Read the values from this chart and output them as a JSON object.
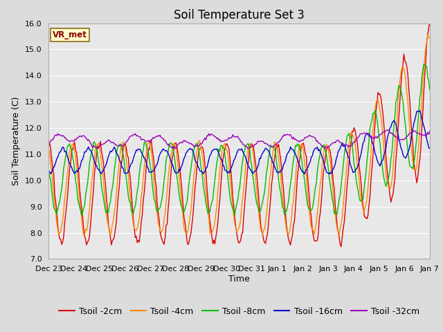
{
  "title": "Soil Temperature Set 3",
  "xlabel": "Time",
  "ylabel": "Soil Temperature (C)",
  "ylim": [
    7.0,
    16.0
  ],
  "yticks": [
    7.0,
    8.0,
    9.0,
    10.0,
    11.0,
    12.0,
    13.0,
    14.0,
    15.0,
    16.0
  ],
  "background_color": "#e8e8e8",
  "grid_color": "#ffffff",
  "fig_background": "#dcdcdc",
  "series": [
    {
      "label": "Tsoil -2cm",
      "color": "#dd0000"
    },
    {
      "label": "Tsoil -4cm",
      "color": "#ff8800"
    },
    {
      "label": "Tsoil -8cm",
      "color": "#00bb00"
    },
    {
      "label": "Tsoil -16cm",
      "color": "#0000cc"
    },
    {
      "label": "Tsoil -32cm",
      "color": "#9900bb"
    }
  ],
  "date_labels": [
    "Dec 23",
    "Dec 24",
    "Dec 25",
    "Dec 26",
    "Dec 27",
    "Dec 28",
    "Dec 29",
    "Dec 30",
    "Dec 31",
    "Jan 1",
    "Jan 2",
    "Jan 3",
    "Jan 4",
    "Jan 5",
    "Jan 6",
    "Jan 7"
  ],
  "vr_met_label": "VR_met",
  "title_fontsize": 12,
  "axis_label_fontsize": 9,
  "tick_fontsize": 8,
  "legend_fontsize": 9
}
